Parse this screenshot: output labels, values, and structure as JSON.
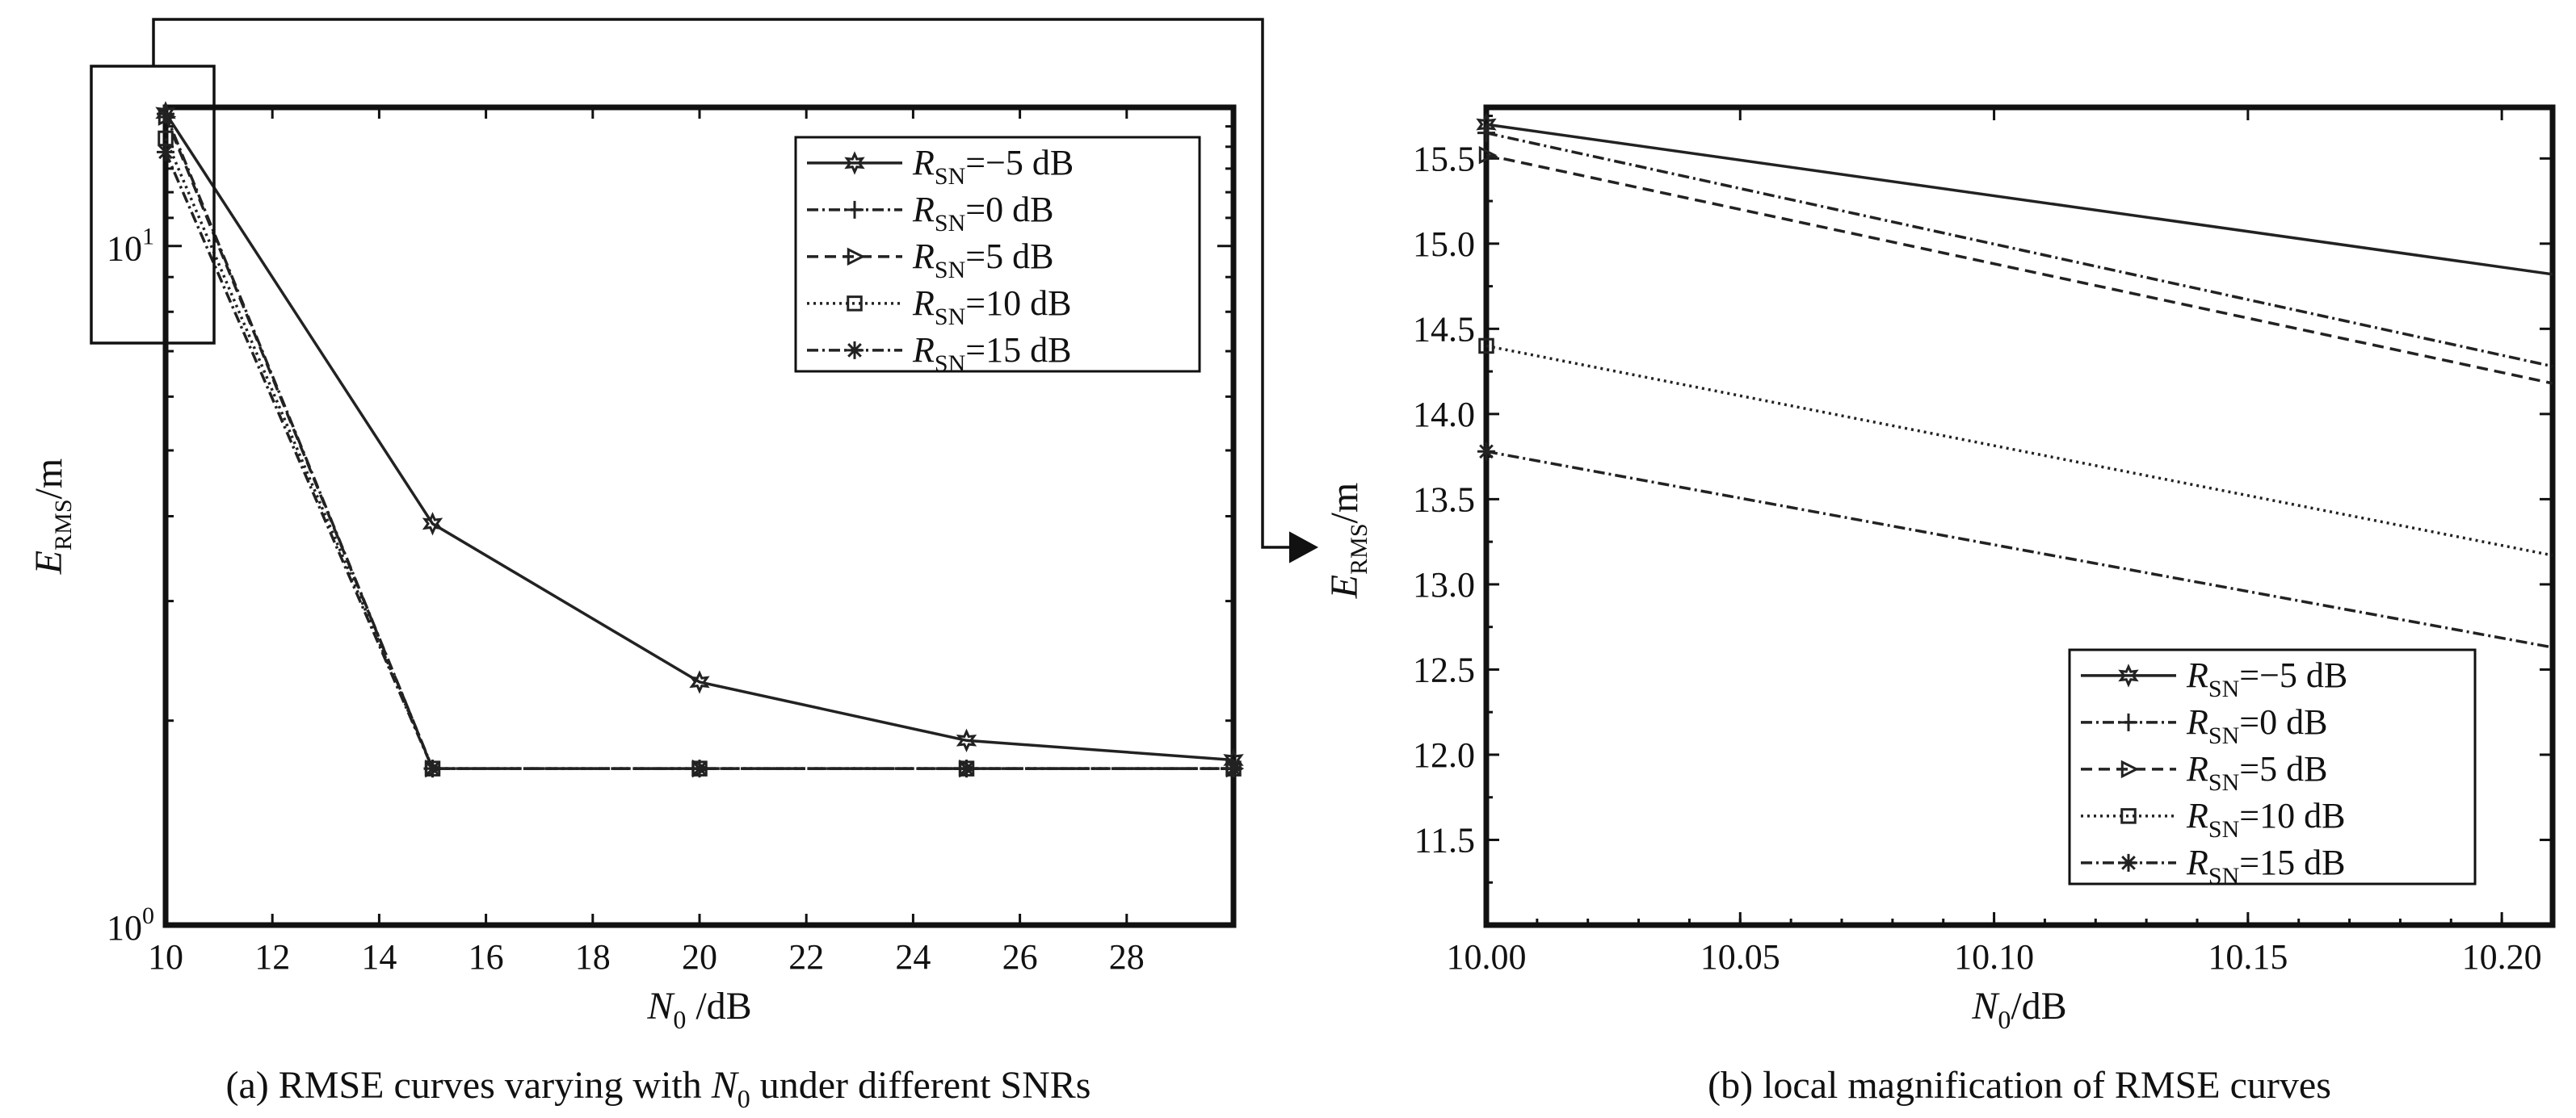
{
  "chart_data": [
    {
      "id": "a",
      "type": "line",
      "caption_prefix": "(a) RMSE curves varying with ",
      "caption_var": "N",
      "caption_var_sub": "0",
      "caption_suffix": " under different SNRs",
      "xlabel_main": "N",
      "xlabel_sub": "0",
      "xlabel_unit": " /dB",
      "ylabel_main": "E",
      "ylabel_sub": "RMS",
      "ylabel_unit": "/m",
      "yscale": "log",
      "xlim": [
        10,
        30
      ],
      "ylim": [
        1,
        16
      ],
      "xticks": [
        10,
        12,
        14,
        16,
        18,
        20,
        22,
        24,
        26,
        28
      ],
      "xticklabels": [
        "10",
        "12",
        "14",
        "16",
        "18",
        "20",
        "22",
        "24",
        "26",
        "28"
      ],
      "yticks": [
        {
          "value": 1,
          "base": "10",
          "exp": "0"
        },
        {
          "value": 10,
          "base": "10",
          "exp": "1"
        }
      ],
      "x": [
        10,
        15,
        20,
        25,
        30
      ],
      "series": [
        {
          "name_main": "R",
          "name_sub": "SN",
          "name_rest": "=−5 dB",
          "dash": "",
          "marker": "star6",
          "values": [
            15.7,
            3.9,
            2.28,
            1.87,
            1.75
          ]
        },
        {
          "name_main": "R",
          "name_sub": "SN",
          "name_rest": "=0 dB",
          "dash": "14 5 3 5",
          "marker": "plus",
          "values": [
            15.65,
            1.7,
            1.7,
            1.7,
            1.7
          ]
        },
        {
          "name_main": "R",
          "name_sub": "SN",
          "name_rest": "=5 dB",
          "dash": "14 8",
          "marker": "triangle",
          "values": [
            15.5,
            1.7,
            1.7,
            1.7,
            1.7
          ]
        },
        {
          "name_main": "R",
          "name_sub": "SN",
          "name_rest": "=10 dB",
          "dash": "3 5",
          "marker": "square",
          "values": [
            14.4,
            1.7,
            1.7,
            1.7,
            1.7
          ]
        },
        {
          "name_main": "R",
          "name_sub": "SN",
          "name_rest": "=15 dB",
          "dash": "14 5 3 5",
          "marker": "asterisk",
          "values": [
            13.75,
            1.7,
            1.7,
            1.7,
            1.7
          ]
        }
      ]
    },
    {
      "id": "b",
      "type": "line",
      "caption_text": "(b) local magnification of RMSE curves",
      "xlabel_main": "N",
      "xlabel_sub": "0",
      "xlabel_unit": "/dB",
      "ylabel_main": "E",
      "ylabel_sub": "RMS",
      "ylabel_unit": "/m",
      "yscale": "linear",
      "xlim": [
        10.0,
        10.21
      ],
      "ylim": [
        11.0,
        15.8
      ],
      "xticks": [
        10.0,
        10.05,
        10.1,
        10.15,
        10.2
      ],
      "xticklabels": [
        "10.00",
        "10.05",
        "10.10",
        "10.15",
        "10.20"
      ],
      "yticks": [
        11.5,
        12.0,
        12.5,
        13.0,
        13.5,
        14.0,
        14.5,
        15.0,
        15.5
      ],
      "yticklabels": [
        "11.5",
        "12.0",
        "12.5",
        "13.0",
        "13.5",
        "14.0",
        "14.5",
        "15.0",
        "15.5"
      ],
      "series": [
        {
          "name_main": "R",
          "name_sub": "SN",
          "name_rest": "=−5 dB",
          "dash": "",
          "marker": "star6",
          "x": [
            10.0,
            10.21
          ],
          "values": [
            15.7,
            14.82
          ]
        },
        {
          "name_main": "R",
          "name_sub": "SN",
          "name_rest": "=0 dB",
          "dash": "14 5 3 5",
          "marker": "plus",
          "x": [
            10.0,
            10.21
          ],
          "values": [
            15.65,
            14.28
          ]
        },
        {
          "name_main": "R",
          "name_sub": "SN",
          "name_rest": "=5 dB",
          "dash": "14 8",
          "marker": "triangle",
          "x": [
            10.0,
            10.21
          ],
          "values": [
            15.52,
            14.18
          ]
        },
        {
          "name_main": "R",
          "name_sub": "SN",
          "name_rest": "=10 dB",
          "dash": "3 5",
          "marker": "square",
          "x": [
            10.0,
            10.21
          ],
          "values": [
            14.4,
            13.17
          ]
        },
        {
          "name_main": "R",
          "name_sub": "SN",
          "name_rest": "=15 dB",
          "dash": "14 5 3 5",
          "marker": "asterisk",
          "x": [
            10.0,
            10.21
          ],
          "values": [
            13.78,
            12.63
          ]
        }
      ]
    }
  ]
}
